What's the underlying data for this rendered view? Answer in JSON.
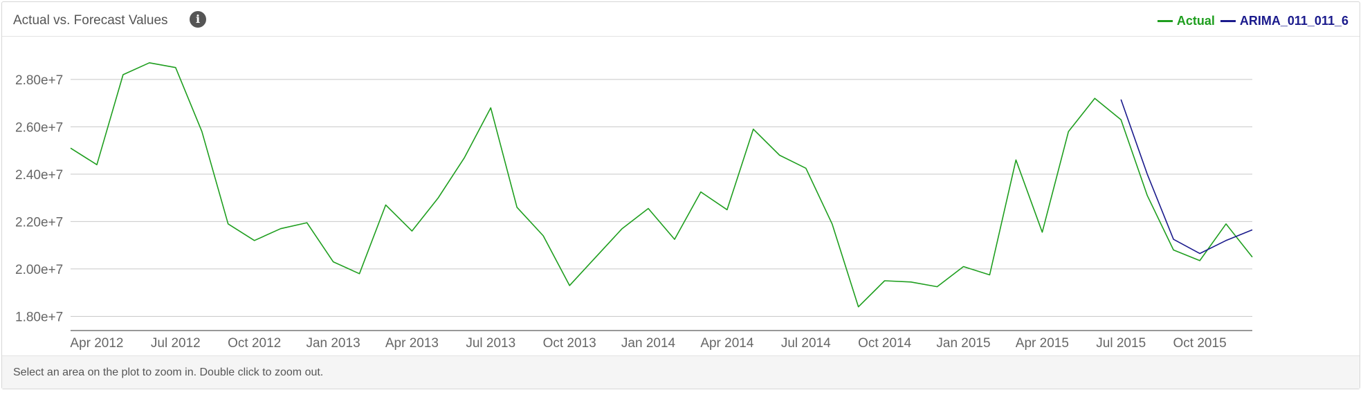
{
  "panel": {
    "title": "Actual vs. Forecast Values",
    "info_icon": "info-icon",
    "footer_text": "Select an area on the plot to zoom in. Double click to zoom out."
  },
  "chart_data": {
    "type": "line",
    "title": "Actual vs. Forecast Values",
    "xlabel": "",
    "ylabel": "",
    "ylim": [
      17400000,
      29600000
    ],
    "yticks": [
      18000000,
      20000000,
      22000000,
      24000000,
      26000000,
      28000000
    ],
    "ytick_labels": [
      "1.80e+7",
      "2.00e+7",
      "2.20e+7",
      "2.40e+7",
      "2.60e+7",
      "2.80e+7"
    ],
    "xticks": [
      "2012-04",
      "2012-07",
      "2012-10",
      "2013-01",
      "2013-04",
      "2013-07",
      "2013-10",
      "2014-01",
      "2014-04",
      "2014-07",
      "2014-10",
      "2015-01",
      "2015-04",
      "2015-07",
      "2015-10"
    ],
    "xtick_labels": [
      "Apr 2012",
      "Jul 2012",
      "Oct 2012",
      "Jan 2013",
      "Apr 2013",
      "Jul 2013",
      "Oct 2013",
      "Jan 2014",
      "Apr 2014",
      "Jul 2014",
      "Oct 2014",
      "Jan 2015",
      "Apr 2015",
      "Jul 2015",
      "Oct 2015"
    ],
    "xlim": [
      "2012-03",
      "2015-12"
    ],
    "grid": "horizontal",
    "legend": "top-right",
    "series": [
      {
        "name": "Actual",
        "color": "#1e9e1e",
        "x": [
          "2012-03",
          "2012-04",
          "2012-05",
          "2012-06",
          "2012-07",
          "2012-08",
          "2012-09",
          "2012-10",
          "2012-11",
          "2012-12",
          "2013-01",
          "2013-02",
          "2013-03",
          "2013-04",
          "2013-05",
          "2013-06",
          "2013-07",
          "2013-08",
          "2013-09",
          "2013-10",
          "2013-11",
          "2013-12",
          "2014-01",
          "2014-02",
          "2014-03",
          "2014-04",
          "2014-05",
          "2014-06",
          "2014-07",
          "2014-08",
          "2014-09",
          "2014-10",
          "2014-11",
          "2014-12",
          "2015-01",
          "2015-02",
          "2015-03",
          "2015-04",
          "2015-05",
          "2015-06",
          "2015-07",
          "2015-08",
          "2015-09",
          "2015-10",
          "2015-11",
          "2015-12"
        ],
        "y": [
          25100000,
          24400000,
          28200000,
          28700000,
          28500000,
          25800000,
          21900000,
          21200000,
          21700000,
          21950000,
          20300000,
          19800000,
          22700000,
          21600000,
          23000000,
          24700000,
          26800000,
          22600000,
          21400000,
          19300000,
          20500000,
          21700000,
          22550000,
          21250000,
          23250000,
          22500000,
          25900000,
          24800000,
          24250000,
          21900000,
          18400000,
          19500000,
          19450000,
          19250000,
          20100000,
          19750000,
          24600000,
          21550000,
          25800000,
          27200000,
          26300000,
          23100000,
          20800000,
          20350000,
          21900000,
          20500000
        ]
      },
      {
        "name": "ARIMA_011_011_6",
        "color": "#1a1a8c",
        "x": [
          "2015-07",
          "2015-08",
          "2015-09",
          "2015-10",
          "2015-11",
          "2015-12"
        ],
        "y": [
          27150000,
          24000000,
          21250000,
          20650000,
          21200000,
          21650000
        ]
      }
    ]
  }
}
